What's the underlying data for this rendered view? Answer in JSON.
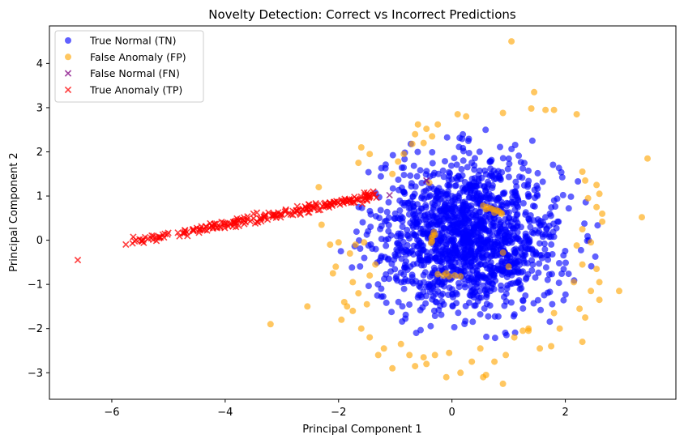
{
  "chart_data": {
    "type": "scatter",
    "title": "Novelty Detection: Correct vs Incorrect Predictions",
    "xlabel": "Principal Component 1",
    "ylabel": "Principal Component 2",
    "xlim": [
      -7.1,
      3.95
    ],
    "ylim": [
      -3.6,
      4.85
    ],
    "xticks": [
      -6,
      -4,
      -2,
      0,
      2
    ],
    "yticks": [
      -3,
      -2,
      -1,
      0,
      1,
      2,
      3,
      4
    ],
    "grid": false,
    "legend_position": "top-left",
    "series": [
      {
        "name": "True Normal (TN)",
        "marker": "circle",
        "color": "#0000ff",
        "generated": {
          "kind": "gaussian",
          "count": 1500,
          "center": [
            0.3,
            0.1
          ],
          "sigma": [
            0.8,
            0.85
          ],
          "max_radius": [
            2.3,
            2.5
          ]
        }
      },
      {
        "name": "False Anomaly (FP)",
        "marker": "circle",
        "color": "#ffa500",
        "points": [
          [
            1.05,
            4.5
          ],
          [
            1.8,
            2.95
          ],
          [
            1.65,
            2.95
          ],
          [
            1.4,
            2.98
          ],
          [
            1.45,
            3.35
          ],
          [
            0.9,
            2.88
          ],
          [
            0.25,
            2.8
          ],
          [
            0.1,
            2.85
          ],
          [
            -0.25,
            2.62
          ],
          [
            -0.45,
            2.52
          ],
          [
            -0.6,
            2.62
          ],
          [
            -0.65,
            2.4
          ],
          [
            -0.35,
            2.35
          ],
          [
            -0.5,
            2.2
          ],
          [
            -0.7,
            2.18
          ],
          [
            -0.85,
            1.95
          ],
          [
            -0.95,
            1.78
          ],
          [
            -1.05,
            1.5
          ],
          [
            -1.6,
            2.1
          ],
          [
            -1.65,
            1.75
          ],
          [
            -1.45,
            1.95
          ],
          [
            2.2,
            2.85
          ],
          [
            3.45,
            1.85
          ],
          [
            2.3,
            1.55
          ],
          [
            2.35,
            1.35
          ],
          [
            2.55,
            1.25
          ],
          [
            2.6,
            1.05
          ],
          [
            2.4,
            0.95
          ],
          [
            2.55,
            0.75
          ],
          [
            2.65,
            0.6
          ],
          [
            2.3,
            0.25
          ],
          [
            2.65,
            0.42
          ],
          [
            3.35,
            0.52
          ],
          [
            2.2,
            -0.12
          ],
          [
            2.45,
            -0.05
          ],
          [
            2.3,
            -0.55
          ],
          [
            2.55,
            -0.65
          ],
          [
            2.6,
            -0.95
          ],
          [
            2.15,
            -0.95
          ],
          [
            2.45,
            -1.15
          ],
          [
            2.6,
            -1.35
          ],
          [
            2.95,
            -1.15
          ],
          [
            2.25,
            -1.55
          ],
          [
            2.35,
            -1.75
          ],
          [
            1.8,
            -1.65
          ],
          [
            1.9,
            -2.0
          ],
          [
            1.55,
            -2.45
          ],
          [
            1.75,
            -2.4
          ],
          [
            2.3,
            -2.3
          ],
          [
            1.35,
            -2.0
          ],
          [
            1.25,
            -2.05
          ],
          [
            1.1,
            -2.2
          ],
          [
            0.95,
            -2.6
          ],
          [
            0.75,
            -2.75
          ],
          [
            0.6,
            -3.05
          ],
          [
            0.35,
            -2.75
          ],
          [
            0.15,
            -3.0
          ],
          [
            -0.1,
            -3.1
          ],
          [
            -0.3,
            -2.6
          ],
          [
            -0.5,
            -2.65
          ],
          [
            -0.45,
            -2.8
          ],
          [
            -0.65,
            -2.85
          ],
          [
            -0.75,
            -2.6
          ],
          [
            -0.9,
            -2.35
          ],
          [
            -1.05,
            -2.9
          ],
          [
            -1.2,
            -2.45
          ],
          [
            -1.3,
            -2.6
          ],
          [
            -1.45,
            -2.2
          ],
          [
            -1.6,
            -2.0
          ],
          [
            -1.75,
            -1.6
          ],
          [
            -1.85,
            -1.5
          ],
          [
            -1.95,
            -1.8
          ],
          [
            -2.05,
            -0.6
          ],
          [
            -2.1,
            -0.75
          ],
          [
            -2.15,
            -0.1
          ],
          [
            -2.0,
            -0.05
          ],
          [
            -1.8,
            -0.3
          ],
          [
            -1.75,
            -0.95
          ],
          [
            -1.65,
            -1.2
          ],
          [
            -1.5,
            -1.45
          ],
          [
            -1.45,
            -0.8
          ],
          [
            -1.35,
            -0.55
          ],
          [
            -1.7,
            -0.1
          ],
          [
            -2.55,
            -1.5
          ],
          [
            -2.3,
            0.35
          ],
          [
            -2.35,
            1.2
          ],
          [
            -1.55,
            -0.05
          ],
          [
            -3.2,
            -1.9
          ],
          [
            -1.9,
            -1.4
          ],
          [
            0.9,
            -3.25
          ],
          [
            0.55,
            -3.1
          ],
          [
            -0.05,
            -2.55
          ],
          [
            0.5,
            -2.45
          ],
          [
            1.35,
            -2.05
          ],
          [
            0.55,
            0.78
          ],
          [
            0.62,
            0.75
          ],
          [
            0.68,
            0.72
          ],
          [
            0.72,
            0.7
          ],
          [
            0.78,
            0.68
          ],
          [
            0.82,
            0.66
          ],
          [
            0.86,
            0.62
          ],
          [
            0.88,
            0.6
          ],
          [
            0.6,
            0.7
          ],
          [
            0.75,
            0.62
          ],
          [
            -0.32,
            0.18
          ],
          [
            -0.34,
            0.1
          ],
          [
            -0.36,
            0.05
          ],
          [
            -0.35,
            -0.02
          ],
          [
            -0.37,
            -0.06
          ],
          [
            -0.3,
            0.12
          ],
          [
            -0.1,
            -0.75
          ],
          [
            -0.15,
            -0.8
          ],
          [
            -0.05,
            -0.82
          ],
          [
            0.05,
            -0.8
          ],
          [
            0.15,
            -0.82
          ],
          [
            -0.25,
            -0.77
          ],
          [
            0.9,
            -0.28
          ],
          [
            1.0,
            -0.6
          ],
          [
            -0.4,
            1.3
          ]
        ]
      },
      {
        "name": "False Normal (FN)",
        "marker": "x",
        "color": "#800080",
        "points": [
          [
            -1.1,
            1.02
          ],
          [
            -0.45,
            1.35
          ]
        ]
      },
      {
        "name": "True Anomaly (TP)",
        "marker": "x",
        "color": "#ff0000",
        "outlier": [
          -6.6,
          -0.45
        ],
        "generated": {
          "kind": "line",
          "count": 230,
          "x_range": [
            -5.8,
            -1.3
          ],
          "slope": 0.25,
          "intercept": 1.35,
          "noise": 0.05
        }
      }
    ]
  }
}
